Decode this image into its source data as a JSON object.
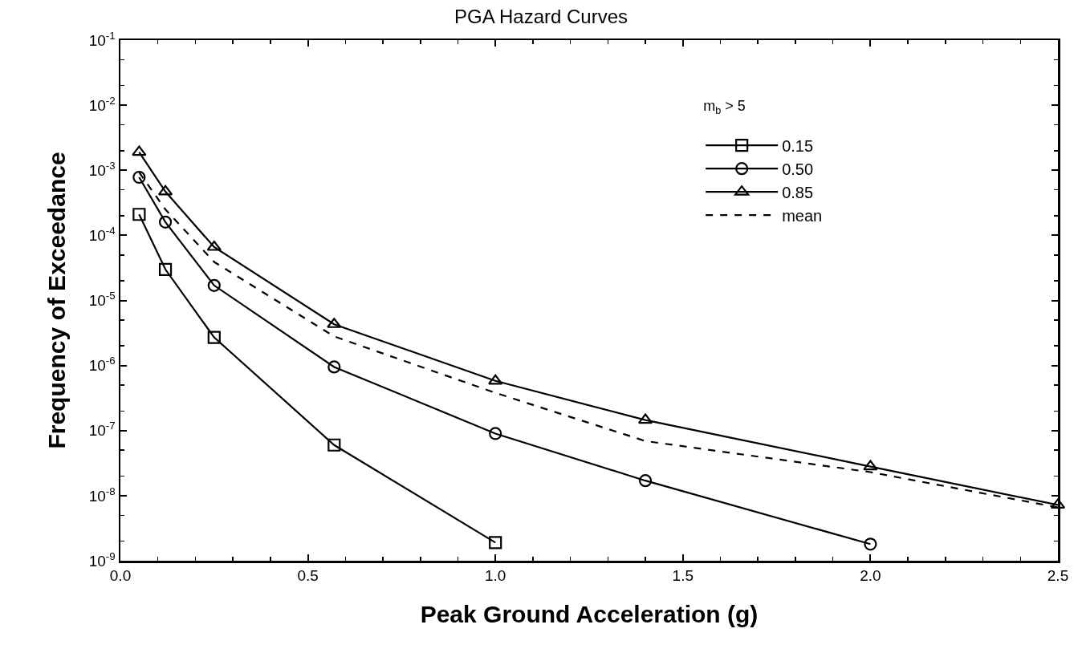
{
  "chart_data": {
    "type": "line",
    "title": "PGA Hazard Curves",
    "xlabel": "Peak Ground Acceleration (g)",
    "ylabel": "Frequency of Exceedance",
    "legend_title": "m$_{b}$ > 5",
    "legend": "top right",
    "grid": false,
    "log": "y",
    "xlim": [
      0,
      2.5
    ],
    "xticks": [
      {
        "value": 0,
        "label": "0.0"
      },
      {
        "value": 0.5,
        "label": "0.5"
      },
      {
        "value": 1,
        "label": "1.0"
      },
      {
        "value": 1.5,
        "label": "1.5"
      },
      {
        "value": 2,
        "label": "2.0"
      },
      {
        "value": 2.5,
        "label": "2.5"
      }
    ],
    "ylim": [
      1e-09,
      0.1
    ],
    "yticks": [
      {
        "value": 1e-09,
        "label": "10$^{-9}$"
      },
      {
        "value": 1e-08,
        "label": "10$^{-8}$"
      },
      {
        "value": 1e-07,
        "label": "10$^{-7}$"
      },
      {
        "value": 1e-06,
        "label": "10$^{-6}$"
      },
      {
        "value": 1e-05,
        "label": "10$^{-5}$"
      },
      {
        "value": 0.0001,
        "label": "10$^{-4}$"
      },
      {
        "value": 0.001,
        "label": "10$^{-3}$"
      },
      {
        "value": 0.01,
        "label": "10$^{-2}$"
      },
      {
        "value": 0.1,
        "label": "10$^{-1}$"
      }
    ],
    "series": [
      {
        "name": "0.15",
        "color": "#000000",
        "marker": "square",
        "line_style": "solid",
        "x": [
          0.05,
          0.12,
          0.25,
          0.57,
          1.0
        ],
        "values": [
          0.00021,
          3e-05,
          2.7e-06,
          6e-08,
          1.9e-09
        ]
      },
      {
        "name": "0.50",
        "color": "#000000",
        "marker": "circle",
        "line_style": "solid",
        "x": [
          0.05,
          0.12,
          0.25,
          0.57,
          1.0,
          1.4,
          2.0
        ],
        "values": [
          0.00078,
          0.00016,
          1.7e-05,
          9.5e-07,
          9e-08,
          1.7e-08,
          1.8e-09
        ]
      },
      {
        "name": "0.85",
        "color": "#000000",
        "marker": "triangle",
        "line_style": "solid",
        "x": [
          0.05,
          0.12,
          0.25,
          0.57,
          1.0,
          1.4,
          2.0,
          2.5
        ],
        "values": [
          0.0019,
          0.00047,
          6.6e-05,
          4.3e-06,
          5.8e-07,
          1.45e-07,
          2.8e-08,
          7.2e-09
        ]
      },
      {
        "name": "mean",
        "color": "#000000",
        "marker": "none",
        "line_style": "dashed",
        "x": [
          0.05,
          0.12,
          0.25,
          0.57,
          1.0,
          1.4,
          2.0,
          2.5
        ],
        "values": [
          0.00093,
          0.00025,
          3.9e-05,
          2.8e-06,
          3.8e-07,
          6.9e-08,
          2.3e-08,
          6.6e-09
        ]
      }
    ]
  }
}
